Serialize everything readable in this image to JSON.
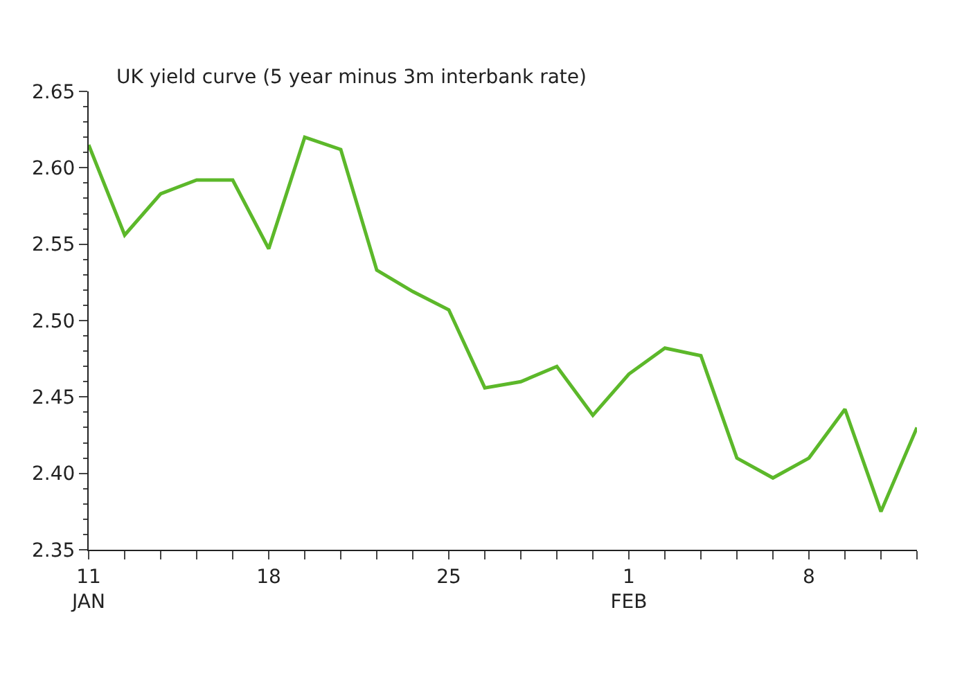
{
  "chart_data": {
    "type": "line",
    "title": "UK yield curve (5 year minus 3m interbank rate)",
    "categories": [
      "11\nJAN",
      null,
      null,
      null,
      null,
      "18",
      null,
      null,
      null,
      null,
      "25",
      null,
      null,
      null,
      null,
      "1\nFEB",
      null,
      null,
      null,
      null,
      "8",
      null,
      null,
      null
    ],
    "series": [
      {
        "color": "#5cb82a",
        "values": [
          2.615,
          2.556,
          2.583,
          2.592,
          2.592,
          2.547,
          2.62,
          2.612,
          2.533,
          2.519,
          2.507,
          2.456,
          2.46,
          2.47,
          2.438,
          2.465,
          2.482,
          2.477,
          2.41,
          2.397,
          2.41,
          2.442,
          2.375,
          2.43
        ]
      }
    ],
    "ylim": [
      2.35,
      2.65
    ],
    "yticks": [
      2.35,
      {
        "value": 2.4,
        "label": "2.40"
      },
      2.45,
      {
        "value": 2.5,
        "label": "2.50"
      },
      2.55,
      {
        "value": 2.6,
        "label": "2.60"
      },
      2.65
    ],
    "marker": "none",
    "line_style": "solid"
  }
}
